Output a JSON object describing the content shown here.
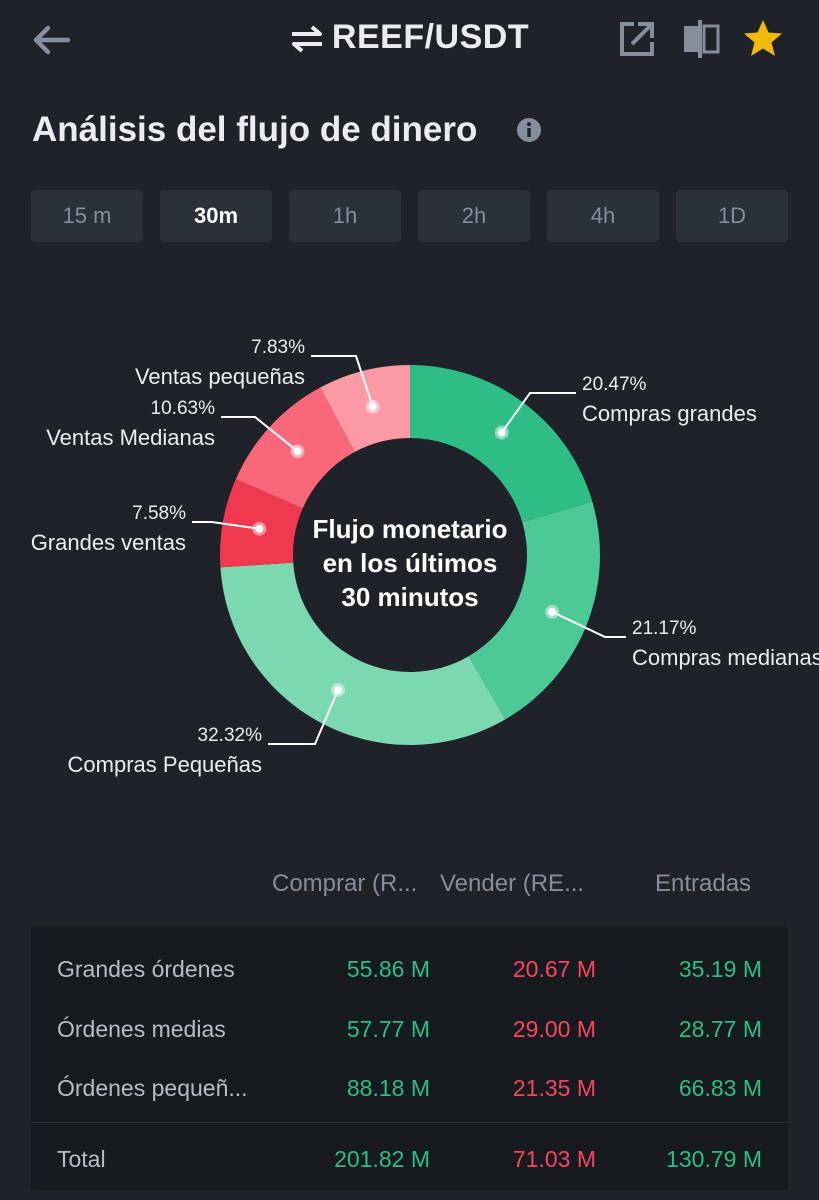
{
  "header": {
    "pair": "REEF/USDT"
  },
  "page": {
    "title": "Análisis del flujo de dinero"
  },
  "tabs": [
    {
      "label": "15 m",
      "active": false
    },
    {
      "label": "30m",
      "active": true
    },
    {
      "label": "1h",
      "active": false
    },
    {
      "label": "2h",
      "active": false
    },
    {
      "label": "4h",
      "active": false
    },
    {
      "label": "1D",
      "active": false
    }
  ],
  "chart_data": {
    "type": "pie",
    "center_label": [
      "Flujo monetario",
      "en los últimos",
      "30 minutos"
    ],
    "slices": [
      {
        "name": "Compras grandes",
        "value": 20.47,
        "label": "20.47%",
        "color": "#2ebd85"
      },
      {
        "name": "Compras medianas",
        "value": 21.17,
        "label": "21.17%",
        "color": "#4cc995"
      },
      {
        "name": "Compras Pequeñas",
        "value": 32.32,
        "label": "32.32%",
        "color": "#7cd8ae"
      },
      {
        "name": "Grandes ventas",
        "value": 7.58,
        "label": "7.58%",
        "color": "#f0394f"
      },
      {
        "name": "Ventas Medianas",
        "value": 10.63,
        "label": "10.63%",
        "color": "#f8687a"
      },
      {
        "name": "Ventas pequeñas",
        "value": 7.83,
        "label": "7.83%",
        "color": "#fb9aa4"
      }
    ]
  },
  "table": {
    "headers": {
      "buy": "Comprar (R...",
      "sell": "Vender (RE...",
      "net": "Entradas"
    },
    "rows": [
      {
        "name": "Grandes órdenes",
        "buy": "55.86 M",
        "sell": "20.67 M",
        "net": "35.19 M"
      },
      {
        "name": "Órdenes medias",
        "buy": "57.77 M",
        "sell": "29.00 M",
        "net": "28.77 M"
      },
      {
        "name": "Órdenes pequeñ...",
        "buy": "88.18 M",
        "sell": "21.35 M",
        "net": "66.83 M"
      }
    ],
    "total": {
      "name": "Total",
      "buy": "201.82 M",
      "sell": "71.03 M",
      "net": "130.79 M"
    }
  }
}
